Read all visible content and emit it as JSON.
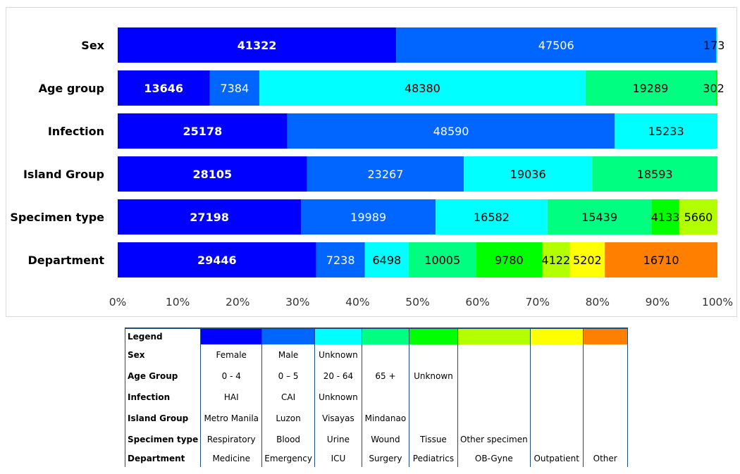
{
  "chart_data": {
    "type": "bar",
    "orientation": "horizontal",
    "stacked": "100%",
    "categories": [
      "Sex",
      "Age group",
      "Infection",
      "Island Group",
      "Specimen type",
      "Department"
    ],
    "segments": [
      {
        "values": [
          41322,
          47506,
          173
        ]
      },
      {
        "values": [
          13646,
          7384,
          48380,
          19289,
          302
        ]
      },
      {
        "values": [
          25178,
          48590,
          15233
        ]
      },
      {
        "values": [
          28105,
          23267,
          19036,
          18593
        ]
      },
      {
        "values": [
          27198,
          19989,
          16582,
          15439,
          4133,
          5660
        ]
      },
      {
        "values": [
          29446,
          7238,
          6498,
          10005,
          9780,
          4122,
          5202,
          16710
        ]
      }
    ],
    "segment_colors": [
      "#0000ff",
      "#0066ff",
      "#00ffff",
      "#00ff80",
      "#00ff00",
      "#b3ff00",
      "#ffff00",
      "#ff8000"
    ],
    "label_colors": [
      "#ffffff",
      "#ffffff",
      "#000000",
      "#000000",
      "#000000",
      "#000000",
      "#000000",
      "#000000"
    ],
    "x_ticks": [
      "0%",
      "10%",
      "20%",
      "30%",
      "40%",
      "50%",
      "60%",
      "70%",
      "80%",
      "90%",
      "100%"
    ],
    "xlim": [
      0,
      100
    ],
    "grid": false
  },
  "legend": {
    "title": "Legend",
    "colors": [
      "#0000ff",
      "#0066ff",
      "#00ffff",
      "#00ff80",
      "#00ff00",
      "#b3ff00",
      "#ffff00",
      "#ff8000"
    ],
    "rows": [
      {
        "label": "Sex",
        "cells": [
          "Female",
          "Male",
          "Unknown",
          "",
          "",
          "",
          "",
          ""
        ]
      },
      {
        "label": "Age Group",
        "cells": [
          "0 - 4",
          "0 – 5",
          "20 - 64",
          "65 +",
          "Unknown",
          "",
          "",
          ""
        ]
      },
      {
        "label": "Infection",
        "cells": [
          "HAI",
          "CAI",
          "Unknown",
          "",
          "",
          "",
          "",
          ""
        ]
      },
      {
        "label": "Island Group",
        "cells": [
          "Metro Manila",
          "Luzon",
          "Visayas",
          "Mindanao",
          "",
          "",
          "",
          ""
        ]
      },
      {
        "label": "Specimen type",
        "cells": [
          "Respiratory",
          "Blood",
          "Urine",
          "Wound",
          "Tissue",
          "Other specimen",
          "",
          ""
        ]
      },
      {
        "label": "Department",
        "cells": [
          "Medicine",
          "Emergency",
          "ICU",
          "Surgery",
          "Pediatrics",
          "OB-Gyne",
          "Outpatient",
          "Other"
        ]
      }
    ]
  }
}
